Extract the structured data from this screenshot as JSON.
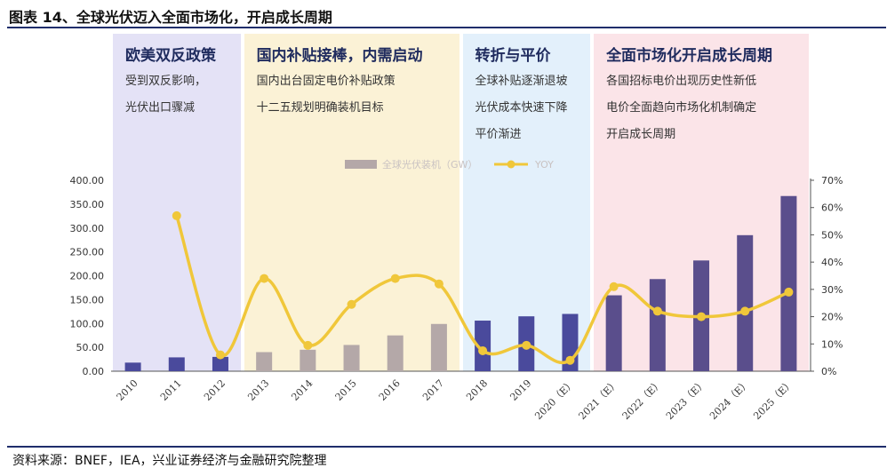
{
  "title": "图表 14、全球光伏迈入全面市场化，开启成长周期",
  "source": "资料来源：BNEF，IEA，兴业证券经济与金融研究院整理",
  "colors": {
    "bar_light": "#b4a8a8",
    "bar_dark": "#5a4e8c",
    "bar_blue": "#4a4a9c",
    "line": "#f0c73a",
    "rule": "#1f2d6b",
    "phase1": "#e4e2f6",
    "phase2": "#fbf2d6",
    "phase3": "#e3f0fb",
    "phase4": "#fbe4e8"
  },
  "phases": [
    {
      "title": "欧美双反政策",
      "lines": [
        "受到双反影响，",
        "光伏出口骤减"
      ]
    },
    {
      "title": "国内补贴接棒，内需启动",
      "lines": [
        "国内出台固定电价补贴政策",
        "十二五规划明确装机目标"
      ]
    },
    {
      "title": "转折与平价",
      "lines": [
        "全球补贴逐渐退坡",
        "光伏成本快速下降",
        "平价渐进"
      ]
    },
    {
      "title": "全面市场化开启成长周期",
      "lines": [
        "各国招标电价出现历史性新低",
        "电价全面趋向市场化机制确定",
        "开启成长周期"
      ]
    }
  ],
  "chart_data": {
    "type": "bar",
    "categories": [
      "2010",
      "2011",
      "2012",
      "2013",
      "2014",
      "2015",
      "2016",
      "2017",
      "2018",
      "2019",
      "2020（E）",
      "2021（E）",
      "2022（E）",
      "2023（E）",
      "2024（E）",
      "2025（E）"
    ],
    "series": [
      {
        "name": "全球光伏装机（GW）",
        "type": "bar",
        "axis": "left",
        "values": [
          18,
          29,
          30,
          40,
          45,
          55,
          75,
          99,
          106,
          115,
          120,
          159,
          193,
          232,
          285,
          367
        ]
      },
      {
        "name": "YOY",
        "type": "line",
        "axis": "right",
        "values": [
          null,
          57,
          6,
          34,
          9.5,
          24.5,
          34,
          32,
          7.5,
          9.5,
          4,
          31,
          22,
          20,
          22,
          29
        ]
      }
    ],
    "y_left": {
      "ticks": [
        "0.00",
        "50.00",
        "100.00",
        "150.00",
        "200.00",
        "250.00",
        "300.00",
        "350.00",
        "400.00"
      ],
      "range": [
        0,
        400
      ]
    },
    "y_right": {
      "ticks": [
        "0%",
        "10%",
        "20%",
        "30%",
        "40%",
        "50%",
        "60%",
        "70%"
      ],
      "range": [
        0,
        70
      ]
    },
    "legend": [
      {
        "label": "全球光伏装机（GW）",
        "kind": "bar"
      },
      {
        "label": "YOY",
        "kind": "line"
      }
    ],
    "legend_position": "top-center",
    "grid": false
  }
}
